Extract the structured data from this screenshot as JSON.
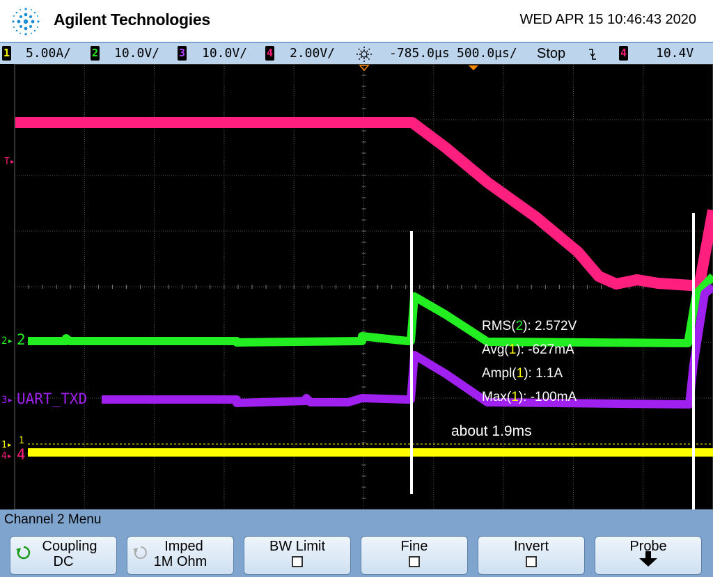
{
  "header": {
    "brand": "Agilent Technologies",
    "datetime": "WED APR 15 10:46:43 2020",
    "logo_icon": "agilent-spark-icon"
  },
  "status": {
    "ch1_num": "1",
    "ch1_scale": "5.00A/",
    "ch2_num": "2",
    "ch2_scale": "10.0V/",
    "ch3_num": "3",
    "ch3_scale": "10.0V/",
    "ch4_num": "4",
    "ch4_scale": "2.00V/",
    "delay": "-785.0µs",
    "timebase": "500.0µs/",
    "run_state": "Stop",
    "trigger_source": "4",
    "trigger_level": "10.4V",
    "trigger_slope_icon": "falling-edge-icon",
    "delay_icon": "delay-sun-icon"
  },
  "screen": {
    "trigger_marker": "T",
    "ch2_marker": "2",
    "ch2_label": "2",
    "ch3_marker": "3",
    "ch3_label": "UART_TXD",
    "ch1_marker": "1",
    "ch4_marker": "4",
    "ch4_label": "4",
    "ch1_ref": "1",
    "measurements": [
      {
        "name": "RMS(",
        "ch": "2",
        "rest": "): 2.572V"
      },
      {
        "name": "Avg(",
        "ch": "1",
        "rest": "): -627mA"
      },
      {
        "name": "Ampl(",
        "ch": "1",
        "rest": "): 1.1A"
      },
      {
        "name": "Max(",
        "ch": "1",
        "rest": "): -100mA"
      }
    ],
    "annotation": "about 1.9ms"
  },
  "colors": {
    "ch1": "#ffff00",
    "ch2": "#22ee22",
    "ch3": "#a020f0",
    "ch4": "#ff1f7f"
  },
  "menu": {
    "title": "Channel 2  Menu",
    "coupling_label": "Coupling",
    "coupling_value": "DC",
    "imped_label": "Imped",
    "imped_value": "1M Ohm",
    "bw_label": "BW Limit",
    "fine_label": "Fine",
    "invert_label": "Invert",
    "probe_label": "Probe"
  }
}
